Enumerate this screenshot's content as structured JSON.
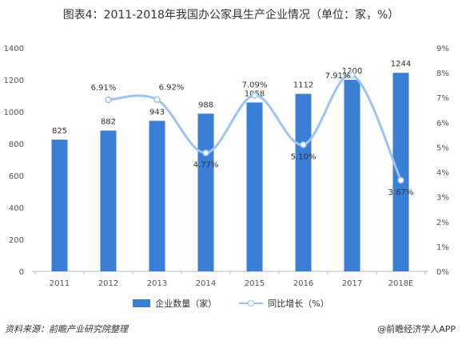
{
  "title": "图表4：2011-2018年我国办公家具生产企业情况（单位：家，%）",
  "source": "资料来源：前瞻产业研究院整理",
  "brand": "@前瞻经济学人APP",
  "colors": {
    "bar": "#3a7fd5",
    "line": "#9cc3f3",
    "axis": "#555555",
    "grid": "#e6e6e6"
  },
  "chart_data": {
    "type": "bar",
    "categories": [
      "2011",
      "2012",
      "2013",
      "2014",
      "2015",
      "2016",
      "2017",
      "2018E"
    ],
    "series": [
      {
        "name": "企业数量（家）",
        "type": "bar",
        "axis": "left",
        "values": [
          825,
          882,
          943,
          988,
          1058,
          1112,
          1200,
          1244
        ]
      },
      {
        "name": "同比增长（%）",
        "type": "line",
        "axis": "right",
        "values": [
          null,
          6.91,
          6.92,
          4.77,
          7.09,
          5.1,
          7.91,
          3.67
        ]
      }
    ],
    "y_left": {
      "min": 0,
      "max": 1400,
      "ticks": [
        "0",
        "200",
        "400",
        "600",
        "800",
        "1000",
        "1200",
        "1400"
      ]
    },
    "y_right": {
      "min": 0,
      "max": 9,
      "ticks": [
        "0%",
        "1%",
        "2%",
        "3%",
        "4%",
        "5%",
        "6%",
        "7%",
        "8%",
        "9%"
      ]
    },
    "bar_labels": [
      "825",
      "882",
      "943",
      "988",
      "1058",
      "1112",
      "1200",
      "1244"
    ],
    "line_labels": [
      "",
      "6.91%",
      "6.92%",
      "4.77%",
      "7.09%",
      "5.10%",
      "7.91%",
      "3.67%"
    ],
    "legend_position": "bottom"
  }
}
